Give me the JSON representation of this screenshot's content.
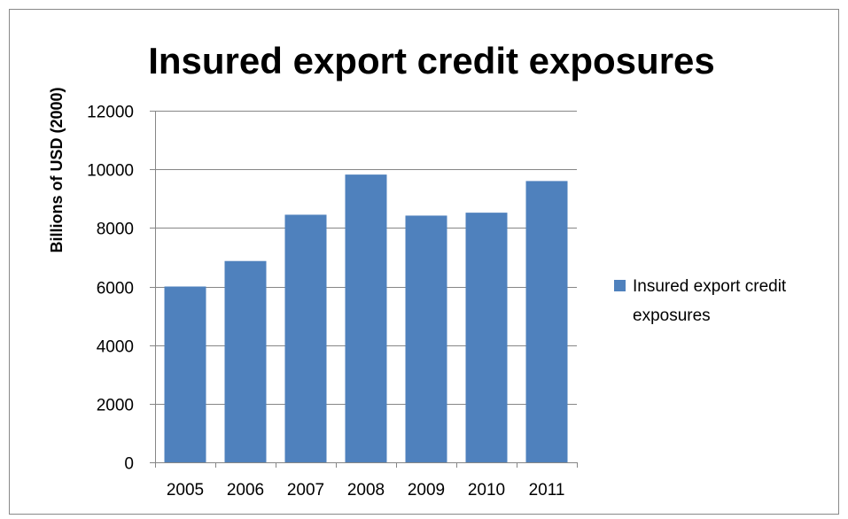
{
  "chart_data": {
    "type": "bar",
    "title": "Insured export credit exposures",
    "xlabel": "",
    "ylabel": "Billions of USD (2000)",
    "categories": [
      "2005",
      "2006",
      "2007",
      "2008",
      "2009",
      "2010",
      "2011"
    ],
    "series": [
      {
        "name": "Insured export credit exposures",
        "color": "#4F81BD",
        "values": [
          6000,
          6870,
          8450,
          9820,
          8420,
          8520,
          9600
        ]
      }
    ],
    "ylim": [
      0,
      12000
    ],
    "yticks": [
      "0",
      "2000",
      "4000",
      "6000",
      "8000",
      "10000",
      "12000"
    ],
    "grid": true,
    "legend": {
      "position": "right",
      "lines": [
        "Insured export credit",
        "exposures"
      ]
    }
  }
}
